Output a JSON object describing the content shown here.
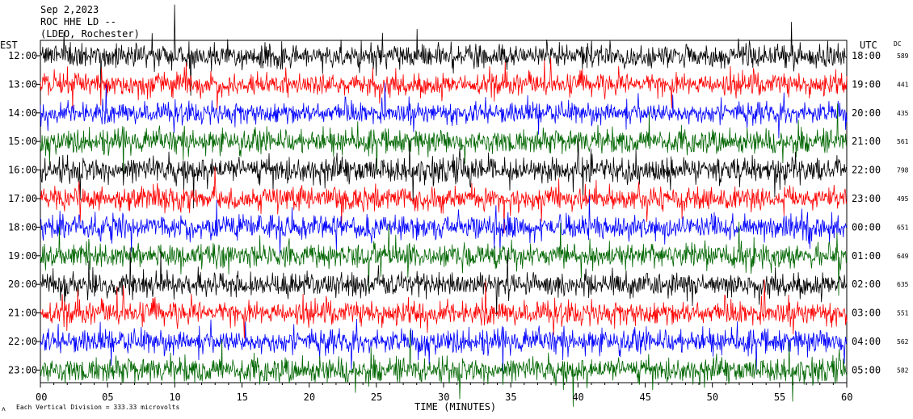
{
  "header": {
    "date": "Sep 2,2023",
    "station": "ROC HHE LD --",
    "network": "(LDEO, Rochester)"
  },
  "left_axis_title": "EST",
  "right_axis_title": "UTC",
  "dc_title": "DC",
  "footer": {
    "scale_note": "Each Vertical Division = 333.33 microvolts"
  },
  "colors": {
    "black": "#000000",
    "red": "#ff0000",
    "blue": "#0000ff",
    "green": "#006600"
  },
  "chart_data": {
    "type": "line",
    "title": "",
    "xlabel": "TIME (MINUTES)",
    "ylabel": "",
    "xlim": [
      0,
      60
    ],
    "x_ticks": [
      "00",
      "05",
      "10",
      "15",
      "20",
      "25",
      "30",
      "35",
      "40",
      "45",
      "50",
      "55",
      "60"
    ],
    "x_tick_values": [
      0,
      5,
      10,
      15,
      20,
      25,
      30,
      35,
      40,
      45,
      50,
      55,
      60
    ],
    "color_cycle": [
      "black",
      "red",
      "blue",
      "green"
    ],
    "rows": [
      {
        "est": "12:00",
        "utc": "18:00",
        "dc": "589",
        "amplitude": 1.0
      },
      {
        "est": "13:00",
        "utc": "19:00",
        "dc": "441",
        "amplitude": 0.95
      },
      {
        "est": "14:00",
        "utc": "20:00",
        "dc": "435",
        "amplitude": 0.9
      },
      {
        "est": "15:00",
        "utc": "21:00",
        "dc": "561",
        "amplitude": 1.0
      },
      {
        "est": "16:00",
        "utc": "22:00",
        "dc": "798",
        "amplitude": 1.1
      },
      {
        "est": "17:00",
        "utc": "23:00",
        "dc": "495",
        "amplitude": 0.95
      },
      {
        "est": "18:00",
        "utc": "00:00",
        "dc": "651",
        "amplitude": 1.0
      },
      {
        "est": "19:00",
        "utc": "01:00",
        "dc": "649",
        "amplitude": 1.0
      },
      {
        "est": "20:00",
        "utc": "02:00",
        "dc": "635",
        "amplitude": 1.0
      },
      {
        "est": "21:00",
        "utc": "03:00",
        "dc": "551",
        "amplitude": 1.0
      },
      {
        "est": "22:00",
        "utc": "04:00",
        "dc": "562",
        "amplitude": 1.0
      },
      {
        "est": "23:00",
        "utc": "05:00",
        "dc": "582",
        "amplitude": 1.05
      }
    ]
  }
}
